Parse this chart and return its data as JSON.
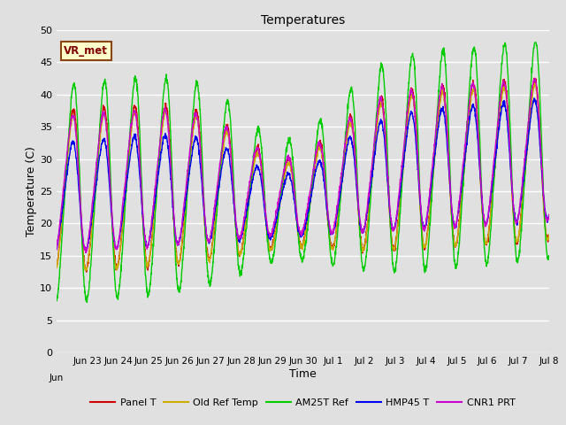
{
  "title": "Temperatures",
  "xlabel": "Time",
  "ylabel": "Temperature (C)",
  "ylim": [
    0,
    50
  ],
  "annotation": "VR_met",
  "bg_color": "#e0e0e0",
  "plot_bg_color": "#e0e0e0",
  "grid_color": "white",
  "series_colors": {
    "Panel T": "#cc0000",
    "Old Ref Temp": "#ccaa00",
    "AM25T Ref": "#00cc00",
    "HMP45 T": "#0000ee",
    "CNR1 PRT": "#cc00cc"
  },
  "num_days": 16,
  "tick_labels": [
    "Jun 23",
    "Jun 24",
    "Jun 25",
    "Jun 26",
    "Jun 27",
    "Jun 28",
    "Jun 29",
    "Jun 30",
    "Jul 1",
    "Jul 2",
    "Jul 3",
    "Jul 4",
    "Jul 5",
    "Jul 6",
    "Jul 7",
    "Jul 8"
  ]
}
